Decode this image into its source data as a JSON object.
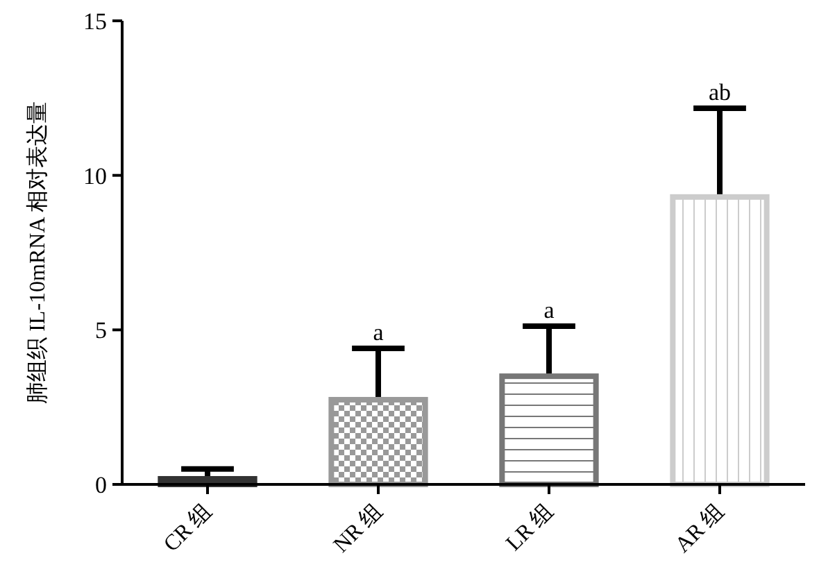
{
  "chart_data": {
    "type": "bar",
    "ylabel": "肺组织 IL-10mRNA 相对表达量",
    "categories": [
      "CR 组",
      "NR 组",
      "LR 组",
      "AR 组"
    ],
    "values": [
      0.18,
      2.74,
      3.5,
      9.3
    ],
    "errors": [
      [
        0.18,
        0.5
      ],
      [
        2.74,
        4.4
      ],
      [
        3.5,
        5.12
      ],
      [
        9.3,
        12.17
      ]
    ],
    "colors": [
      "#333333",
      "#999999",
      "#777777",
      "#cccccc"
    ],
    "ylim": [
      0,
      15
    ],
    "yticks": [
      0,
      5,
      10,
      15
    ],
    "annotations": [
      {
        "text": "a",
        "x": "NR 组",
        "y": 4.4
      },
      {
        "text": "a",
        "x": "LR 组",
        "y": 5.12
      },
      {
        "text": "ab",
        "x": "AR 组",
        "y": 12.17
      }
    ]
  }
}
